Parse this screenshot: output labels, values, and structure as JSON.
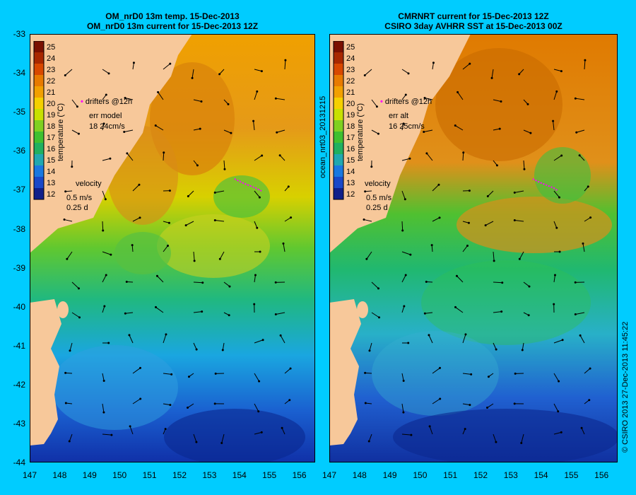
{
  "left_panel": {
    "title_line1": "OM_nrD0 13m temp. 15-Dec-2013",
    "title_line2": "OM_nrD0 13m current for 15-Dec-2013 12Z",
    "drifters_label": "drifters @12h",
    "err_label": "err model",
    "err_value": "18 24cm/s",
    "velocity_label": "velocity",
    "velocity_scale": "0.5 m/s",
    "velocity_duration": "0.25 d"
  },
  "right_panel": {
    "title_line1": "CMRNRT current for 15-Dec-2013 12Z",
    "title_line2": "CSIRO 3day AVHRR SST at 15-Dec-2013 00Z",
    "drifters_label": "drifters @12h",
    "err_label": "err alt",
    "err_value": "16 25cm/s",
    "velocity_label": "velocity",
    "velocity_scale": "0.5 m/s",
    "velocity_duration": "0.25 d"
  },
  "colorbar": {
    "label": "temperature (°C)",
    "ticks": [
      "25",
      "24",
      "23",
      "22",
      "21",
      "20",
      "19",
      "18",
      "17",
      "16",
      "15",
      "14",
      "13",
      "12"
    ]
  },
  "axes": {
    "lat_ticks": [
      "-33",
      "-34",
      "-35",
      "-36",
      "-37",
      "-38",
      "-39",
      "-40",
      "-41",
      "-42",
      "-43",
      "-44"
    ],
    "lon_ticks": [
      "147",
      "148",
      "149",
      "150",
      "151",
      "152",
      "153",
      "154",
      "155",
      "156"
    ]
  },
  "side_label_middle": "ocean_nrt03_20131215",
  "side_label_right": "© CSIRO 2013   27-Dec-2013 11:45:22",
  "colors": {
    "background": "#00ccff",
    "land": "#f7c89a",
    "drifter": "#ff00ff"
  }
}
